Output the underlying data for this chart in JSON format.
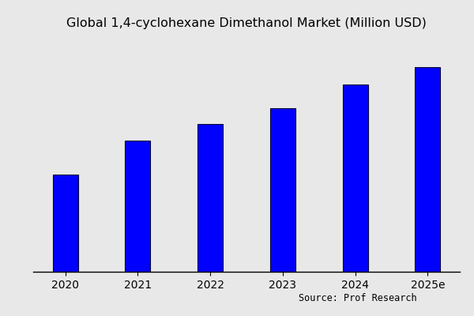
{
  "title": "Global 1,4-cyclohexane Dimethanol Market (Million USD)",
  "categories": [
    "2020",
    "2021",
    "2022",
    "2023",
    "2024",
    "2025e"
  ],
  "values": [
    100,
    135,
    152,
    168,
    192,
    210
  ],
  "bar_color": "#0000FF",
  "bar_edge_color": "#000033",
  "background_color": "#e8e8e8",
  "source_text": "Source: Prof Research",
  "title_fontsize": 11.5,
  "tick_fontsize": 10,
  "source_fontsize": 8.5,
  "ylim": [
    0,
    240
  ],
  "bar_width": 0.35
}
